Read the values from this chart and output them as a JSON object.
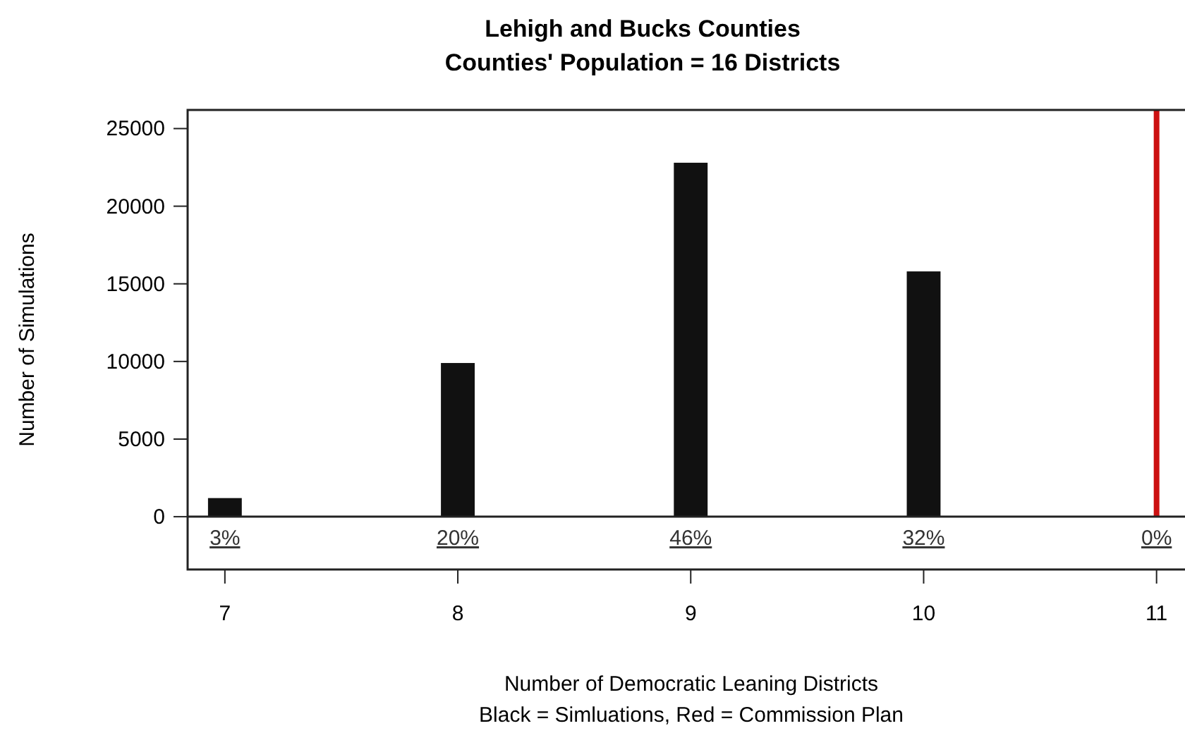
{
  "chart_data": {
    "type": "bar",
    "title": "Lehigh and Bucks Counties",
    "subtitle": "Counties' Population = 16 Districts",
    "xlabel": "Number of Democratic Leaning Districts",
    "ylabel": "Number of Simulations",
    "annotations": [
      "3%",
      "20%",
      "46%",
      "32%",
      "0%",
      "Black = Simluations, Red = Commission Plan"
    ],
    "x": [
      7,
      8,
      9,
      10,
      11
    ],
    "values": [
      1200,
      9900,
      22800,
      15800,
      0
    ],
    "color": "#111111",
    "xlim": [
      6.84,
      11.11
    ],
    "xticks": [
      7,
      8,
      9,
      10,
      11
    ],
    "ylim": [
      -3400,
      26200
    ],
    "yticks": [
      0,
      5000,
      10000,
      15000,
      20000,
      25000
    ],
    "ref_lines": [
      {
        "axis": "x",
        "value": 11,
        "color": "#cc1111"
      }
    ]
  }
}
